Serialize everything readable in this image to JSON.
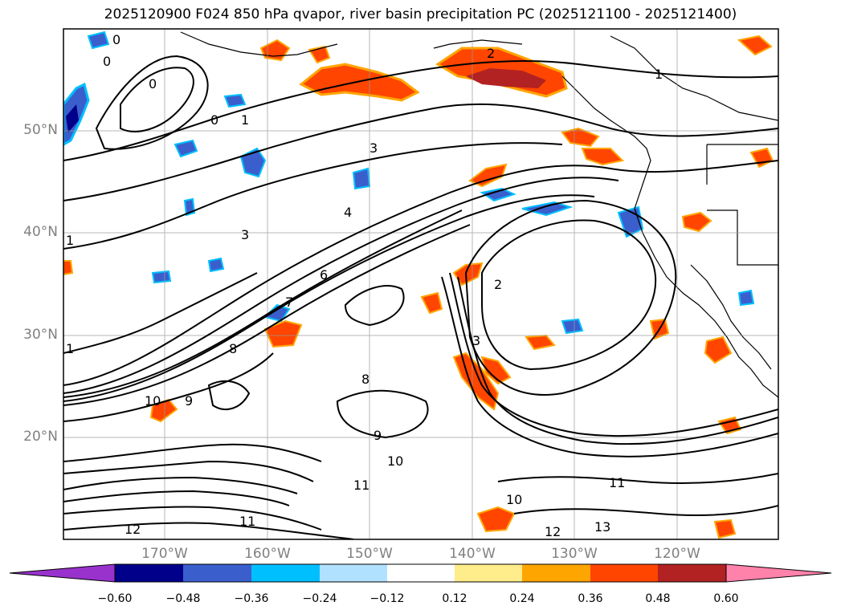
{
  "title": "2025120900 F024 850 hPa qvapor, river basin precipitation PC (2025121100 - 2025121400)",
  "map": {
    "lat_labels": [
      "50°N",
      "40°N",
      "30°N",
      "20°N"
    ],
    "lon_labels": [
      "170°W",
      "160°W",
      "150°W",
      "140°W",
      "130°W",
      "120°W"
    ],
    "contour_labels": [
      "0",
      "0",
      "0",
      "0",
      "1",
      "2",
      "3",
      "3",
      "4",
      "6",
      "7",
      "8",
      "8",
      "9",
      "9",
      "10",
      "10",
      "10",
      "11",
      "11",
      "11",
      "12",
      "12",
      "13",
      "3",
      "1",
      "2",
      "1",
      "1"
    ]
  },
  "colorbar": {
    "colors": [
      "#9932CC",
      "#00008B",
      "#3A5FCD",
      "#00BFFF",
      "#B0E2FF",
      "#FFFFFF",
      "#FFEC8B",
      "#FFA500",
      "#FF4500",
      "#B22222",
      "#FF82AB"
    ],
    "tick_labels": [
      "−0.60",
      "−0.48",
      "−0.36",
      "−0.24",
      "−0.12",
      "0.12",
      "0.24",
      "0.36",
      "0.48",
      "0.60"
    ]
  }
}
